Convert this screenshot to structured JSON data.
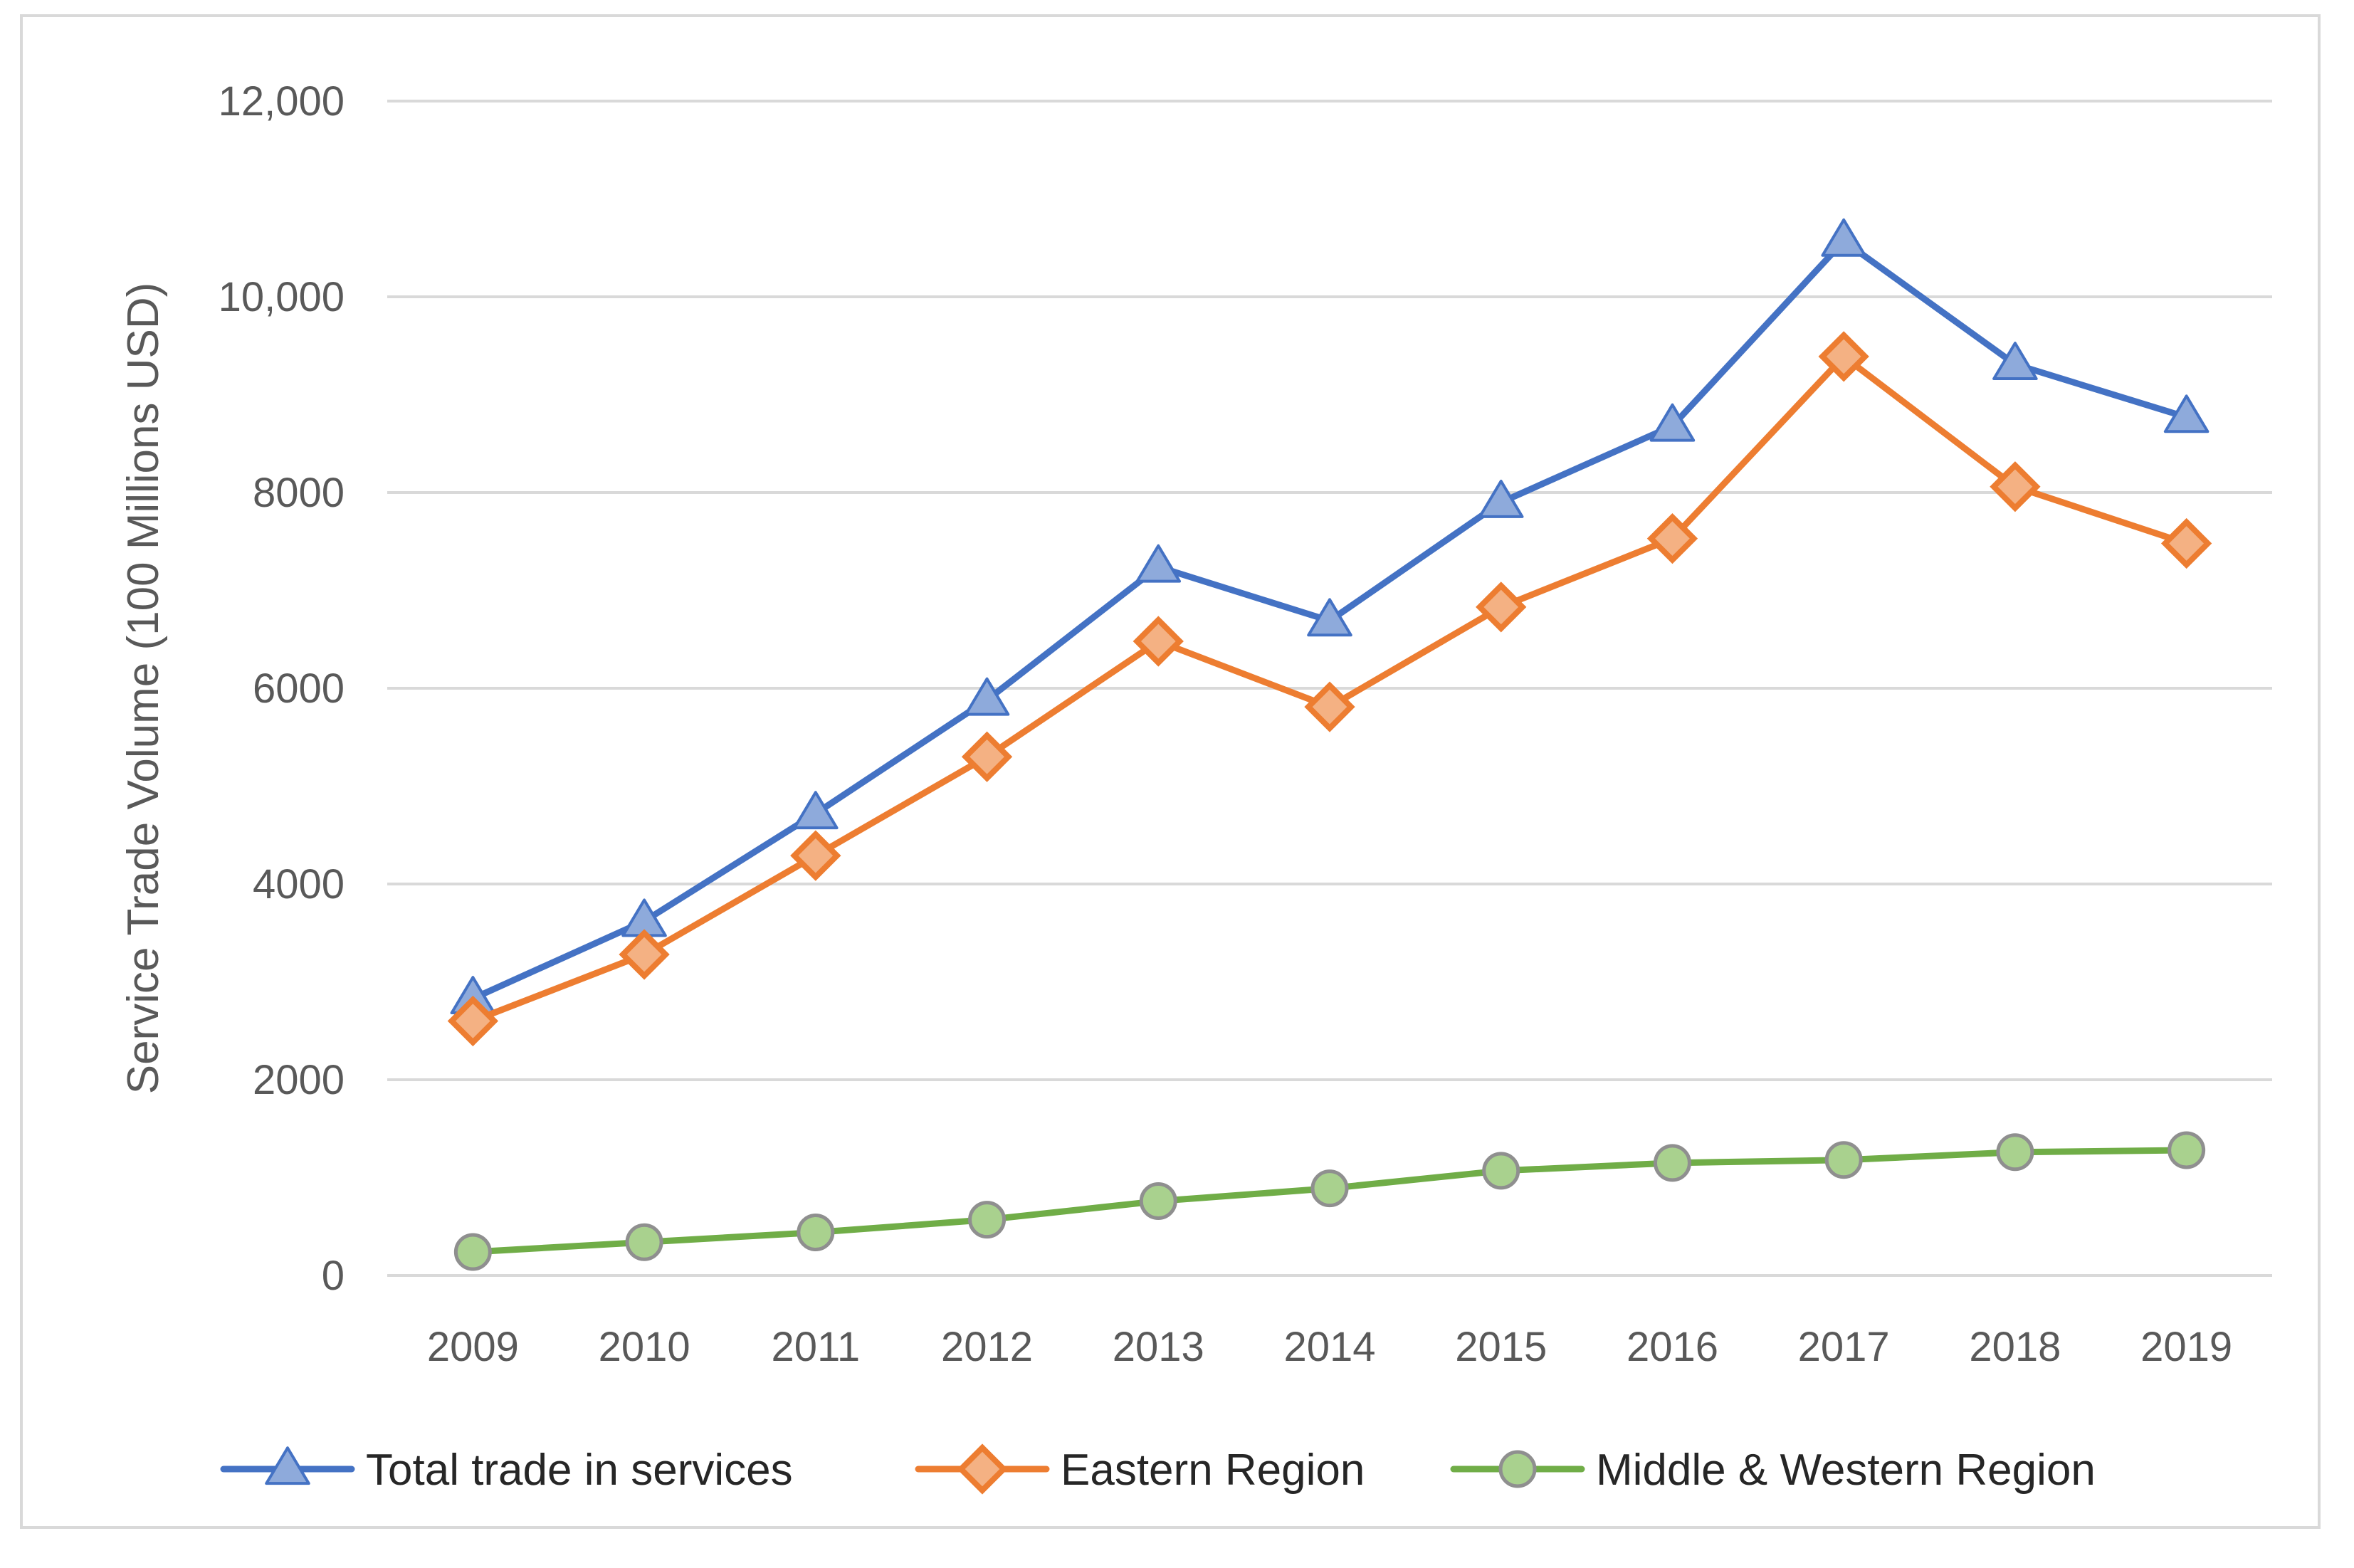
{
  "chart_data": {
    "type": "line",
    "title": "",
    "xlabel": "",
    "ylabel": "Service Trade Volume (100 Millions USD)",
    "ylim": [
      0,
      12000
    ],
    "yticks": [
      {
        "value": 0,
        "label": "0"
      },
      {
        "value": 2000,
        "label": "2000"
      },
      {
        "value": 4000,
        "label": "4000"
      },
      {
        "value": 6000,
        "label": "6000"
      },
      {
        "value": 8000,
        "label": "8000"
      },
      {
        "value": 10000,
        "label": "10,000"
      },
      {
        "value": 12000,
        "label": "12,000"
      }
    ],
    "grid": true,
    "legend_position": "bottom",
    "categories": [
      "2009",
      "2010",
      "2011",
      "2012",
      "2013",
      "2014",
      "2015",
      "2016",
      "2017",
      "2018",
      "2019"
    ],
    "series": [
      {
        "name": "Total trade in services",
        "color": "#4472c4",
        "marker": "triangle",
        "marker_fill": "#8eaadb",
        "values": [
          2830,
          3620,
          4720,
          5880,
          7240,
          6690,
          7900,
          8680,
          10570,
          9310,
          8770
        ]
      },
      {
        "name": "Eastern Region",
        "color": "#ed7d31",
        "marker": "diamond",
        "marker_fill": "#f4b183",
        "values": [
          2600,
          3280,
          4290,
          5300,
          6480,
          5810,
          6830,
          7530,
          9390,
          8060,
          7480
        ]
      },
      {
        "name": "Middle & Western Region",
        "color": "#70ad47",
        "marker": "circle",
        "marker_fill": "#a9d18e",
        "values": [
          240,
          340,
          440,
          570,
          760,
          890,
          1070,
          1150,
          1180,
          1260,
          1280
        ]
      }
    ]
  }
}
